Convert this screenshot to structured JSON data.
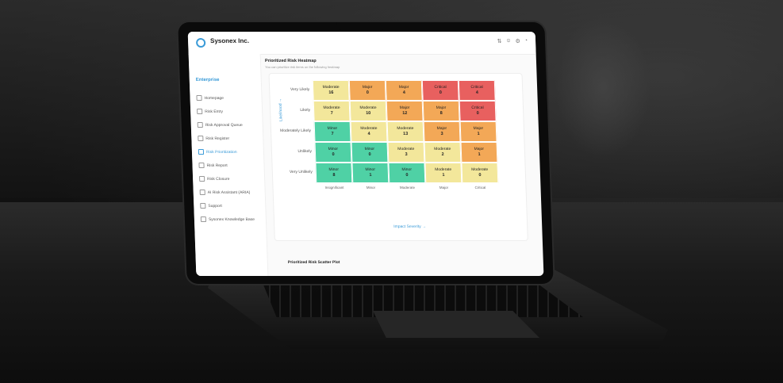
{
  "app": {
    "brand": "Sysonex Inc.",
    "section": "Enterprise"
  },
  "nav": [
    {
      "label": "Homepage",
      "active": false
    },
    {
      "label": "Risk Entry",
      "active": false
    },
    {
      "label": "Risk Approval Queue",
      "active": false
    },
    {
      "label": "Risk Register",
      "active": false
    },
    {
      "label": "Risk Prioritization",
      "active": true
    },
    {
      "label": "Risk Report",
      "active": false
    },
    {
      "label": "Risk Closure",
      "active": false
    },
    {
      "label": "AI Risk Assistant (ARIA)",
      "active": false
    },
    {
      "label": "Support",
      "active": false
    },
    {
      "label": "Sysonex Knowledge Base",
      "active": false
    }
  ],
  "heatmap": {
    "title": "Prioritized Risk Heatmap",
    "subtitle": "You can prioritize risk items on the following heatmap",
    "y_axis_label": "Likelihood →",
    "x_axis_label": "Impact Severity →",
    "rows": [
      "Very Likely",
      "Likely",
      "Moderately Likely",
      "Unlikely",
      "Very Unlikely"
    ],
    "cols": [
      "Insignificant",
      "Minor",
      "Moderate",
      "Major",
      "Critical"
    ],
    "colors": {
      "Minor": "#4fd1a5",
      "Moderate": "#f3e79b",
      "Major": "#f3a857",
      "Critical": "#e8605f"
    },
    "cells": [
      [
        {
          "level": "Moderate",
          "count": "16"
        },
        {
          "level": "Major",
          "count": "0"
        },
        {
          "level": "Major",
          "count": "4"
        },
        {
          "level": "Critical",
          "count": "0"
        },
        {
          "level": "Critical",
          "count": "4"
        }
      ],
      [
        {
          "level": "Moderate",
          "count": "7"
        },
        {
          "level": "Moderate",
          "count": "10"
        },
        {
          "level": "Major",
          "count": "12"
        },
        {
          "level": "Major",
          "count": "8"
        },
        {
          "level": "Critical",
          "count": "0"
        }
      ],
      [
        {
          "level": "Minor",
          "count": "7"
        },
        {
          "level": "Moderate",
          "count": "4"
        },
        {
          "level": "Moderate",
          "count": "13"
        },
        {
          "level": "Major",
          "count": "3"
        },
        {
          "level": "Major",
          "count": "1"
        }
      ],
      [
        {
          "level": "Minor",
          "count": "0"
        },
        {
          "level": "Minor",
          "count": "0"
        },
        {
          "level": "Moderate",
          "count": "3"
        },
        {
          "level": "Moderate",
          "count": "2"
        },
        {
          "level": "Major",
          "count": "1"
        }
      ],
      [
        {
          "level": "Minor",
          "count": "8"
        },
        {
          "level": "Minor",
          "count": "1"
        },
        {
          "level": "Minor",
          "count": "0"
        },
        {
          "level": "Moderate",
          "count": "1"
        },
        {
          "level": "Moderate",
          "count": "0"
        }
      ]
    ]
  },
  "scatter": {
    "title": "Prioritized Risk Scatter Plot"
  },
  "icons": [
    "filter-icon",
    "user-icon",
    "settings-icon",
    "bell-icon"
  ]
}
